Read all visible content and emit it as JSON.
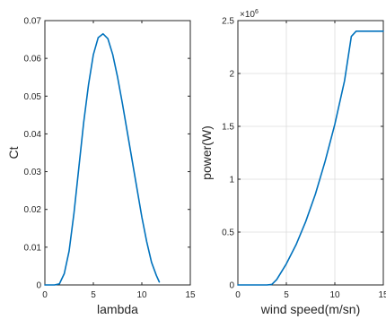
{
  "chart_data": [
    {
      "type": "line",
      "xlabel": "lambda",
      "ylabel": "Ct",
      "xlim": [
        0,
        15
      ],
      "ylim": [
        0,
        0.07
      ],
      "xticks": [
        0,
        5,
        10,
        15
      ],
      "yticks": [
        0,
        0.01,
        0.02,
        0.03,
        0.04,
        0.05,
        0.06,
        0.07
      ],
      "xtick_labels": [
        "0",
        "5",
        "10",
        "15"
      ],
      "ytick_labels": [
        "0",
        "0.01",
        "0.02",
        "0.03",
        "0.04",
        "0.05",
        "0.06",
        "0.07"
      ],
      "grid": false,
      "color": "#0072BD",
      "series": [
        {
          "x": [
            0,
            1,
            1.5,
            2,
            2.5,
            3,
            3.5,
            4,
            4.5,
            5,
            5.5,
            6,
            6.5,
            7,
            7.5,
            8,
            8.5,
            9,
            9.5,
            10,
            10.5,
            11,
            11.5,
            11.8
          ],
          "y": [
            0,
            0,
            0.0003,
            0.003,
            0.009,
            0.019,
            0.031,
            0.043,
            0.053,
            0.061,
            0.0655,
            0.0665,
            0.0652,
            0.061,
            0.055,
            0.048,
            0.0405,
            0.033,
            0.0255,
            0.018,
            0.0115,
            0.006,
            0.0025,
            0.0008
          ]
        }
      ]
    },
    {
      "type": "line",
      "xlabel": "wind speed(m/sn)",
      "ylabel": "power(W)",
      "y_multiplier_label": "×10",
      "y_multiplier_exponent": "6",
      "xlim": [
        0,
        15
      ],
      "ylim": [
        0,
        2.5
      ],
      "xticks": [
        0,
        5,
        10,
        15
      ],
      "yticks": [
        0,
        0.5,
        1,
        1.5,
        2,
        2.5
      ],
      "xtick_labels": [
        "0",
        "5",
        "10",
        "15"
      ],
      "ytick_labels": [
        "0",
        "0.5",
        "1",
        "1.5",
        "2",
        "2.5"
      ],
      "grid": true,
      "color": "#0072BD",
      "series": [
        {
          "x": [
            0,
            3,
            3.5,
            4,
            5,
            6,
            7,
            8,
            9,
            10,
            11,
            11.7,
            12.2,
            15
          ],
          "y": [
            0,
            0,
            0.005,
            0.05,
            0.2,
            0.38,
            0.6,
            0.86,
            1.17,
            1.52,
            1.93,
            2.35,
            2.4,
            2.4
          ]
        }
      ]
    }
  ]
}
